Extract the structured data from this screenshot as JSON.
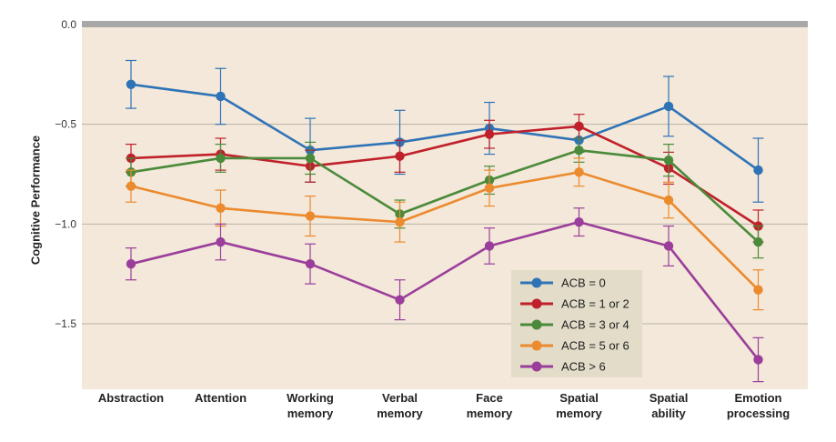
{
  "chart_data": {
    "type": "line",
    "title": "",
    "xlabel": "",
    "ylabel": "Cognitive Performance",
    "ylim": [
      -1.8,
      0.0
    ],
    "yticks": [
      {
        "value": 0.0,
        "label": "0.0"
      },
      {
        "value": -0.5,
        "label": "−0.5"
      },
      {
        "value": -1.0,
        "label": "−1.0"
      },
      {
        "value": -1.5,
        "label": "−1.5"
      }
    ],
    "grid": true,
    "legend_position": "bottom-right",
    "categories": [
      [
        "Abstraction"
      ],
      [
        "Attention"
      ],
      [
        "Working",
        "memory"
      ],
      [
        "Verbal",
        "memory"
      ],
      [
        "Face",
        "memory"
      ],
      [
        "Spatial",
        "memory"
      ],
      [
        "Spatial",
        "ability"
      ],
      [
        "Emotion",
        "processing"
      ]
    ],
    "series": [
      {
        "name": "ACB = 0",
        "color": "#2f73b7",
        "values": [
          -0.3,
          -0.36,
          -0.63,
          -0.59,
          -0.52,
          -0.58,
          -0.41,
          -0.73
        ],
        "errors": [
          0.12,
          0.14,
          0.16,
          0.16,
          0.13,
          0.06,
          0.15,
          0.16
        ]
      },
      {
        "name": "ACB = 1 or 2",
        "color": "#c0202a",
        "values": [
          -0.67,
          -0.65,
          -0.71,
          -0.66,
          -0.55,
          -0.51,
          -0.72,
          -1.01
        ],
        "errors": [
          0.07,
          0.08,
          0.08,
          0.08,
          0.07,
          0.06,
          0.08,
          0.08
        ]
      },
      {
        "name": "ACB = 3 or 4",
        "color": "#4a8a3a",
        "values": [
          -0.74,
          -0.67,
          -0.67,
          -0.95,
          -0.78,
          -0.63,
          -0.68,
          -1.09
        ],
        "errors": [
          0.07,
          0.07,
          0.08,
          0.07,
          0.07,
          0.06,
          0.08,
          0.08
        ]
      },
      {
        "name": "ACB = 5 or 6",
        "color": "#ec8a2e",
        "values": [
          -0.81,
          -0.92,
          -0.96,
          -0.99,
          -0.82,
          -0.74,
          -0.88,
          -1.33
        ],
        "errors": [
          0.08,
          0.09,
          0.1,
          0.1,
          0.09,
          0.07,
          0.09,
          0.1
        ]
      },
      {
        "name": "ACB > 6",
        "color": "#9b3e9b",
        "values": [
          -1.2,
          -1.09,
          -1.2,
          -1.38,
          -1.11,
          -0.99,
          -1.11,
          -1.68
        ],
        "errors": [
          0.08,
          0.09,
          0.1,
          0.1,
          0.09,
          0.07,
          0.1,
          0.11
        ]
      }
    ]
  }
}
